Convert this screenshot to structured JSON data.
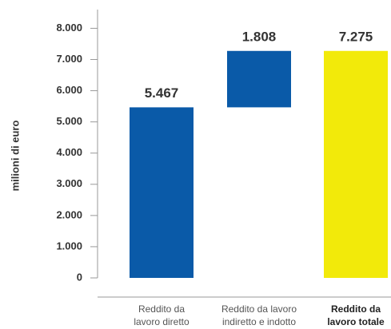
{
  "chart_data": {
    "type": "waterfall",
    "y_label": "milioni di euro",
    "categories": [
      [
        "Reddito da",
        "lavoro diretto"
      ],
      [
        "Reddito da lavoro",
        "indiretto e indotto"
      ],
      [
        "Reddito da",
        "lavoro totale"
      ]
    ],
    "values": [
      5467,
      1808,
      7275
    ],
    "value_labels": [
      "5.467",
      "1.808",
      "7.275"
    ],
    "is_total": [
      false,
      false,
      true
    ],
    "colors": [
      "#0a5aa8",
      "#0a5aa8",
      "#f2ea0a"
    ],
    "ylim": [
      0,
      8600
    ],
    "yticks": [
      0,
      {
        "value": 1000,
        "label": "1.000"
      },
      {
        "value": 2000,
        "label": "2.000"
      },
      {
        "value": 3000,
        "label": "3.000"
      },
      {
        "value": 4000,
        "label": "4.000"
      },
      {
        "value": 5000,
        "label": "5.000"
      },
      {
        "value": 6000,
        "label": "6.000"
      },
      {
        "value": 7000,
        "label": "7.000"
      },
      {
        "value": 8000,
        "label": "8.000"
      }
    ]
  }
}
